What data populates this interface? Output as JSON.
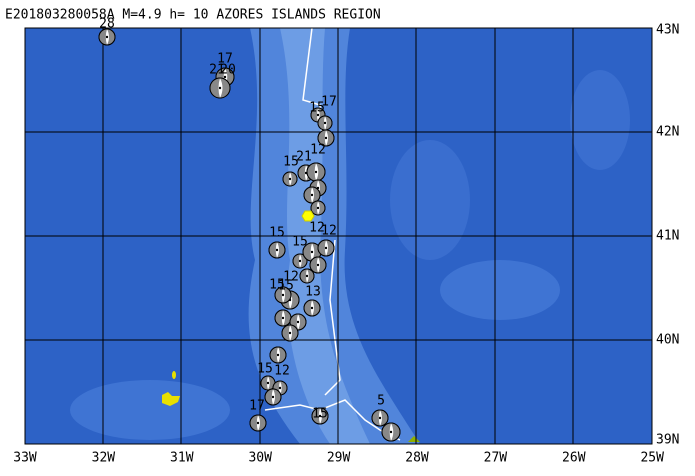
{
  "header": {
    "title": "E201803280058A M=4.9 h= 10 AZORES ISLANDS REGION"
  },
  "lat_labels": [
    "43N",
    "42N",
    "41N",
    "40N",
    "39N"
  ],
  "lon_labels": [
    "33W",
    "32W",
    "31W",
    "30W",
    "29W",
    "28W",
    "27W",
    "26W",
    "25W"
  ],
  "events": {
    "labels": [
      "28",
      "17",
      "21",
      "20",
      "15",
      "17",
      "15",
      "21",
      "12",
      "12",
      "12",
      "15",
      "15",
      "12",
      "13",
      "15",
      "15",
      "12",
      "17",
      "15",
      "15",
      "5"
    ]
  }
}
